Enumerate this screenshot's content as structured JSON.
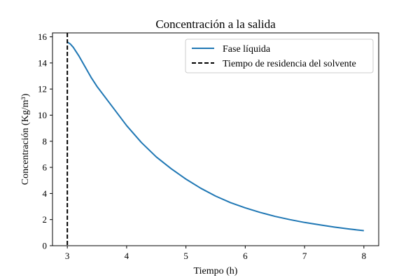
{
  "chart_data": {
    "type": "line",
    "title": "Concentración a la salida",
    "xlabel": "Tiempo (h)",
    "ylabel": "Concentración (Kg/m³)",
    "xlim": [
      2.75,
      8.25
    ],
    "ylim": [
      0,
      16.3
    ],
    "xticks": [
      3,
      4,
      5,
      6,
      7,
      8
    ],
    "yticks": [
      0,
      2,
      4,
      6,
      8,
      10,
      12,
      14,
      16
    ],
    "grid": false,
    "legend_position": "top-right",
    "series": [
      {
        "name": "Fase líquida",
        "color": "#1f77b4",
        "style": "solid",
        "x": [
          3.0,
          3.05,
          3.1,
          3.2,
          3.3,
          3.4,
          3.5,
          3.75,
          4.0,
          4.25,
          4.5,
          4.75,
          5.0,
          5.25,
          5.5,
          5.75,
          6.0,
          6.25,
          6.5,
          6.75,
          7.0,
          7.25,
          7.5,
          7.75,
          8.0
        ],
        "y": [
          15.6,
          15.45,
          15.2,
          14.5,
          13.7,
          12.9,
          12.2,
          10.7,
          9.2,
          7.9,
          6.8,
          5.9,
          5.1,
          4.4,
          3.8,
          3.3,
          2.9,
          2.55,
          2.25,
          2.0,
          1.78,
          1.6,
          1.43,
          1.28,
          1.15
        ]
      },
      {
        "name": "Tiempo de residencia del solvente",
        "color": "#000000",
        "style": "dashed",
        "x_constant": 3.0
      }
    ]
  }
}
